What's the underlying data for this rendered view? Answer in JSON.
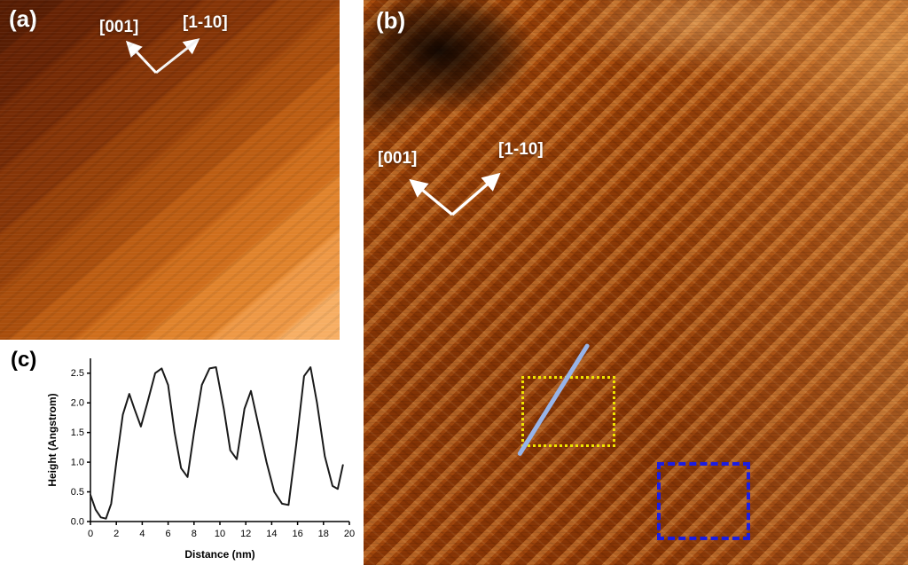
{
  "panels": {
    "a": {
      "label": "(a)",
      "dir1": "[001]",
      "dir2": "[1-10]"
    },
    "b": {
      "label": "(b)",
      "dir1": "[001]",
      "dir2": "[1-10]",
      "overlays": {
        "dotted_box_color": "#f0e400",
        "dashed_box_color": "#1c1ce0",
        "profile_line_color": "#98b4e8"
      }
    },
    "c": {
      "label": "(c)"
    }
  },
  "colors": {
    "stm_dark": "#581d03",
    "stm_light": "#f7ae63",
    "arrow": "#ffffff"
  },
  "chart_data": {
    "type": "line",
    "title": "",
    "xlabel": "Distance (nm)",
    "ylabel": "Height (Angstrom)",
    "xlim": [
      0,
      20
    ],
    "ylim": [
      0,
      2.75
    ],
    "xticks": [
      0,
      2,
      4,
      6,
      8,
      10,
      12,
      14,
      16,
      18,
      20
    ],
    "yticks": [
      0,
      0.5,
      1.0,
      1.5,
      2.0,
      2.5
    ],
    "grid": false,
    "legend": false,
    "line_color": "#1a1a1a",
    "x": [
      0,
      0.4,
      0.8,
      1.2,
      1.6,
      2.0,
      2.5,
      3.0,
      3.4,
      3.9,
      4.4,
      5.0,
      5.5,
      6.0,
      6.5,
      7.0,
      7.5,
      8.0,
      8.6,
      9.2,
      9.7,
      10.3,
      10.8,
      11.3,
      11.9,
      12.4,
      13.0,
      13.6,
      14.2,
      14.8,
      15.3,
      15.9,
      16.5,
      17.0,
      17.5,
      18.1,
      18.7,
      19.1,
      19.5
    ],
    "y": [
      0.45,
      0.2,
      0.07,
      0.05,
      0.3,
      1.0,
      1.8,
      2.15,
      1.9,
      1.6,
      2.0,
      2.5,
      2.58,
      2.3,
      1.5,
      0.9,
      0.75,
      1.5,
      2.3,
      2.58,
      2.6,
      1.9,
      1.2,
      1.05,
      1.9,
      2.2,
      1.6,
      1.0,
      0.5,
      0.3,
      0.28,
      1.3,
      2.45,
      2.6,
      2.0,
      1.1,
      0.6,
      0.55,
      0.95
    ]
  }
}
